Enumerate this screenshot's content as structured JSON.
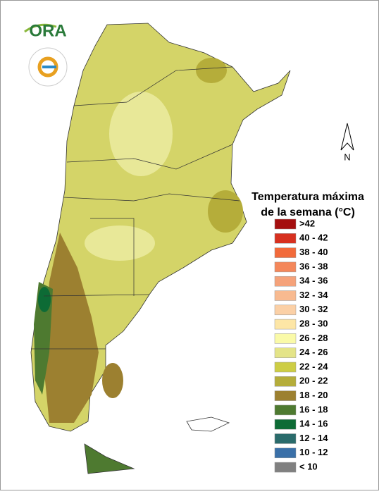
{
  "logo": "ORA",
  "north": "N",
  "title": [
    "Temperatura máxima",
    "de la semana (°C)"
  ],
  "legend": [
    {
      "label": ">42",
      "color": "#a50f0f"
    },
    {
      "label": "40 - 42",
      "color": "#d7301f"
    },
    {
      "label": "38 - 40",
      "color": "#f26a3a"
    },
    {
      "label": "36 - 38",
      "color": "#f4875a"
    },
    {
      "label": "34 - 36",
      "color": "#f5a27a"
    },
    {
      "label": "32 - 34",
      "color": "#f8ba90"
    },
    {
      "label": "30 - 32",
      "color": "#fbd0a6"
    },
    {
      "label": "28 - 30",
      "color": "#fde6a6"
    },
    {
      "label": "26 - 28",
      "color": "#fafaa8"
    },
    {
      "label": "24 - 26",
      "color": "#e4e488"
    },
    {
      "label": "22 - 24",
      "color": "#cdcd44"
    },
    {
      "label": "20 - 22",
      "color": "#b5ad3a"
    },
    {
      "label": "18 - 20",
      "color": "#9c8030"
    },
    {
      "label": "16 - 18",
      "color": "#4e7a30"
    },
    {
      "label": "14 - 16",
      "color": "#0d6b35"
    },
    {
      "label": "12 - 14",
      "color": "#2a6b6b"
    },
    {
      "label": "10 - 12",
      "color": "#3a70a8"
    },
    {
      "label": "< 10",
      "color": "#808080"
    }
  ]
}
